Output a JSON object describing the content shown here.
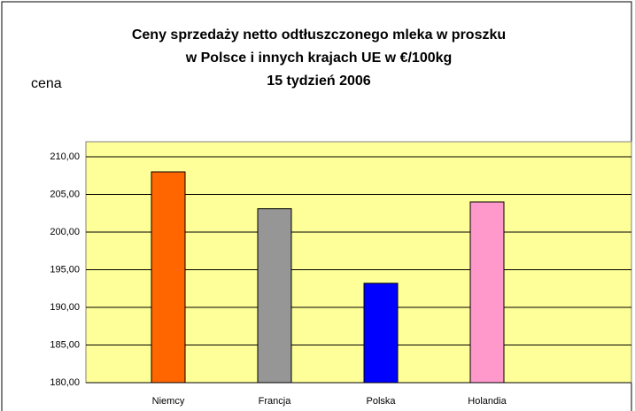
{
  "chart_data": {
    "type": "bar",
    "title": [
      "Ceny sprzedaży netto odtłuszczonego mleka w proszku",
      "w Polsce i innych krajach UE w €/100kg",
      "15 tydzień 2006"
    ],
    "ylabel": "cena",
    "categories": [
      "Niemcy",
      "Francja",
      "Polska",
      "Holandia"
    ],
    "values": [
      208.0,
      203.1,
      193.2,
      204.0
    ],
    "colors": [
      "#ff6600",
      "#969696",
      "#0000ff",
      "#ff99cc"
    ],
    "ylim": [
      180,
      210
    ],
    "yticks": [
      {
        "value": 180,
        "label": "180,00"
      },
      {
        "value": 185,
        "label": "185,00"
      },
      {
        "value": 190,
        "label": "190,00"
      },
      {
        "value": 195,
        "label": "195,00"
      },
      {
        "value": 200,
        "label": "200,00"
      },
      {
        "value": 205,
        "label": "205,00"
      },
      {
        "value": 210,
        "label": "210,00"
      }
    ],
    "grid": true
  }
}
